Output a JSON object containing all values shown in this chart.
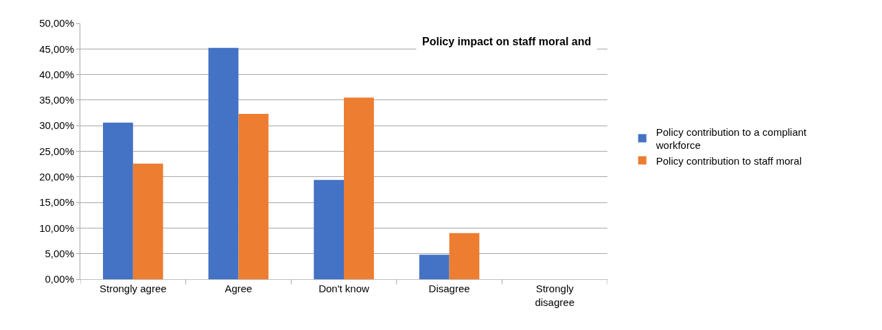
{
  "chart_data": {
    "type": "bar",
    "title": "Policy impact on staff moral and",
    "categories": [
      "Strongly agree",
      "Agree",
      "Don't know",
      "Disagree",
      "Strongly disagree"
    ],
    "series": [
      {
        "name": "Policy contribution to a compliant workforce",
        "color": "#4472c4",
        "values": [
          30.6,
          45.2,
          19.4,
          4.8,
          0
        ]
      },
      {
        "name": "Policy contribution to staff moral",
        "color": "#ed7d31",
        "values": [
          22.6,
          32.3,
          35.5,
          9.0,
          0
        ]
      }
    ],
    "ylim": [
      0,
      50
    ],
    "yticks": [
      {
        "value": 0,
        "label": "0,00%"
      },
      {
        "value": 5,
        "label": "5,00%"
      },
      {
        "value": 10,
        "label": "10,00%"
      },
      {
        "value": 15,
        "label": "15,00%"
      },
      {
        "value": 20,
        "label": "20,00%"
      },
      {
        "value": 25,
        "label": "25,00%"
      },
      {
        "value": 30,
        "label": "30,00%"
      },
      {
        "value": 35,
        "label": "35,00%"
      },
      {
        "value": 40,
        "label": "40,00%"
      },
      {
        "value": 45,
        "label": "45,00%"
      },
      {
        "value": 50,
        "label": "50,00%"
      }
    ],
    "grid": "y",
    "legend": "right"
  }
}
